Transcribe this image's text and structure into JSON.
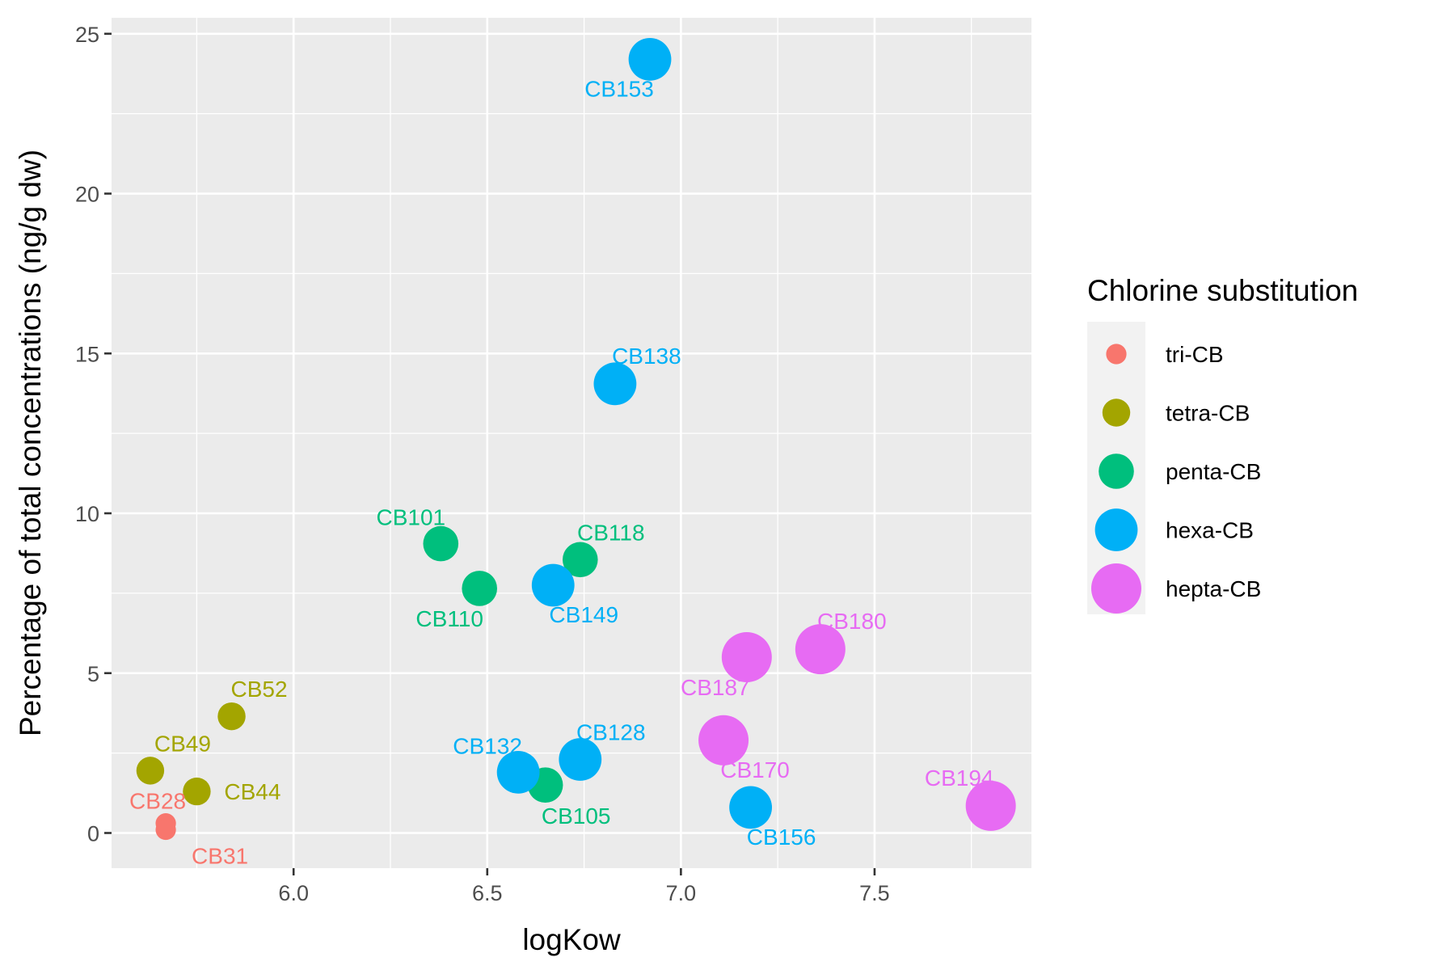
{
  "chart_data": {
    "type": "scatter",
    "title": "",
    "xlabel": "logKow",
    "ylabel": "Percentage of total concentrations (ng/g dw)",
    "xlim": [
      5.53,
      7.905
    ],
    "ylim": [
      -1.1,
      25.5
    ],
    "x_ticks": [
      6.0,
      6.5,
      7.0,
      7.5
    ],
    "x_tick_labels": [
      "6.0",
      "6.5",
      "7.0",
      "7.5"
    ],
    "y_ticks": [
      0,
      5,
      10,
      15,
      20,
      25
    ],
    "y_tick_labels": [
      "0",
      "5",
      "10",
      "15",
      "20",
      "25"
    ],
    "grid": true,
    "legend": {
      "title": "Chlorine substitution",
      "position": "right",
      "entries": [
        "tri-CB",
        "tetra-CB",
        "penta-CB",
        "hexa-CB",
        "hepta-CB"
      ]
    },
    "series": [
      {
        "name": "tri-CB",
        "color": "#F8766D",
        "size_rank": 1,
        "points": [
          {
            "label": "CB28",
            "x": 5.67,
            "y": 0.3
          },
          {
            "label": "CB31",
            "x": 5.67,
            "y": 0.1
          }
        ]
      },
      {
        "name": "tetra-CB",
        "color": "#A3A500",
        "size_rank": 2,
        "points": [
          {
            "label": "CB49",
            "x": 5.63,
            "y": 1.95
          },
          {
            "label": "CB44",
            "x": 5.75,
            "y": 1.3
          },
          {
            "label": "CB52",
            "x": 5.84,
            "y": 3.65
          }
        ]
      },
      {
        "name": "penta-CB",
        "color": "#00BF7D",
        "size_rank": 3,
        "points": [
          {
            "label": "CB101",
            "x": 6.38,
            "y": 9.05
          },
          {
            "label": "CB110",
            "x": 6.48,
            "y": 7.65
          },
          {
            "label": "CB118",
            "x": 6.74,
            "y": 8.55
          },
          {
            "label": "CB105",
            "x": 6.65,
            "y": 1.5
          }
        ]
      },
      {
        "name": "hexa-CB",
        "color": "#00B0F6",
        "size_rank": 4,
        "points": [
          {
            "label": "CB153",
            "x": 6.92,
            "y": 24.2
          },
          {
            "label": "CB138",
            "x": 6.83,
            "y": 14.05
          },
          {
            "label": "CB149",
            "x": 6.67,
            "y": 7.75
          },
          {
            "label": "CB132",
            "x": 6.58,
            "y": 1.9
          },
          {
            "label": "CB128",
            "x": 6.74,
            "y": 2.3
          },
          {
            "label": "CB156",
            "x": 7.18,
            "y": 0.8
          }
        ]
      },
      {
        "name": "hepta-CB",
        "color": "#E76BF3",
        "size_rank": 5,
        "points": [
          {
            "label": "CB180",
            "x": 7.36,
            "y": 5.75
          },
          {
            "label": "CB187",
            "x": 7.17,
            "y": 5.5
          },
          {
            "label": "CB170",
            "x": 7.11,
            "y": 2.9
          },
          {
            "label": "CB194",
            "x": 7.8,
            "y": 0.85
          }
        ]
      }
    ]
  }
}
